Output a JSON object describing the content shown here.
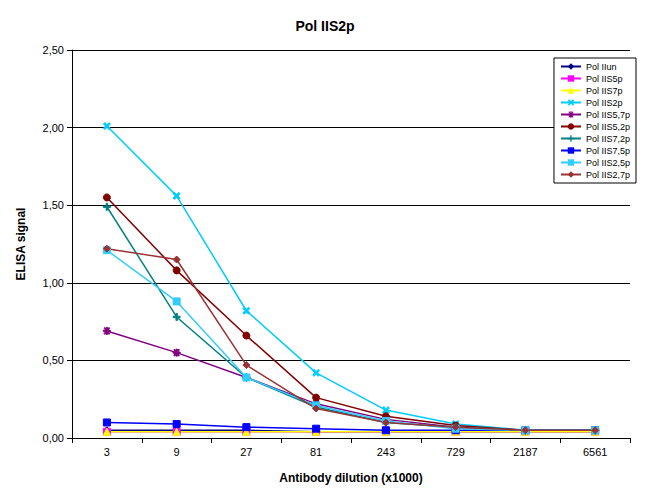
{
  "chart_data": {
    "type": "line",
    "title": "Pol IIS2p",
    "x_label": "Antibody dilution (x1000)",
    "y_label": "ELISA signal",
    "categories": [
      3,
      9,
      27,
      81,
      243,
      729,
      2187,
      6561
    ],
    "ylim": [
      0,
      2.5
    ],
    "yticks": [
      {
        "value": 0,
        "label": "0,00"
      },
      {
        "value": 0.5,
        "label": "0,50"
      },
      {
        "value": 1,
        "label": "1,00"
      },
      {
        "value": 1.5,
        "label": "1,50"
      },
      {
        "value": 2,
        "label": "2,00"
      },
      {
        "value": 2.5,
        "label": "2,50"
      }
    ],
    "grid": true,
    "legend": "upper right",
    "series": [
      {
        "name": "Pol IIun",
        "color": "#000080",
        "marker": "diamond",
        "values": [
          0.05,
          0.05,
          0.05,
          0.04,
          0.04,
          0.04,
          0.04,
          0.04
        ]
      },
      {
        "name": "Pol IIS5p",
        "color": "#ff00ff",
        "marker": "square",
        "values": [
          0.04,
          0.04,
          0.04,
          0.04,
          0.04,
          0.04,
          0.04,
          0.04
        ]
      },
      {
        "name": "Pol IIS7p",
        "color": "#ffff00",
        "marker": "triangle",
        "values": [
          0.04,
          0.04,
          0.04,
          0.04,
          0.04,
          0.04,
          0.04,
          0.04
        ]
      },
      {
        "name": "Pol IIS2p",
        "color": "#00ccff",
        "marker": "x",
        "values": [
          2.01,
          1.56,
          0.82,
          0.42,
          0.18,
          0.09,
          0.05,
          0.05
        ]
      },
      {
        "name": "Pol IIS5,7p",
        "color": "#800080",
        "marker": "star",
        "values": [
          0.69,
          0.55,
          0.39,
          0.22,
          0.12,
          0.07,
          0.05,
          0.05
        ]
      },
      {
        "name": "Pol IIS5,2p",
        "color": "#800000",
        "marker": "circle",
        "values": [
          1.55,
          1.08,
          0.66,
          0.26,
          0.14,
          0.08,
          0.05,
          0.05
        ]
      },
      {
        "name": "Pol IIS7,2p",
        "color": "#008080",
        "marker": "plus",
        "values": [
          1.49,
          0.78,
          0.39,
          0.2,
          0.1,
          0.07,
          0.05,
          0.05
        ]
      },
      {
        "name": "Pol IIS7,5p",
        "color": "#0000ff",
        "marker": "dash",
        "values": [
          0.1,
          0.09,
          0.07,
          0.06,
          0.05,
          0.05,
          0.05,
          0.05
        ]
      },
      {
        "name": "Pol IIS2,5p",
        "color": "#33ccff",
        "marker": "dash",
        "values": [
          1.21,
          0.88,
          0.39,
          0.21,
          0.11,
          0.06,
          0.05,
          0.05
        ]
      },
      {
        "name": "Pol IIS2,7p",
        "color": "#993333",
        "marker": "diamond",
        "values": [
          1.22,
          1.15,
          0.47,
          0.19,
          0.1,
          0.07,
          0.05,
          0.05
        ]
      }
    ]
  }
}
